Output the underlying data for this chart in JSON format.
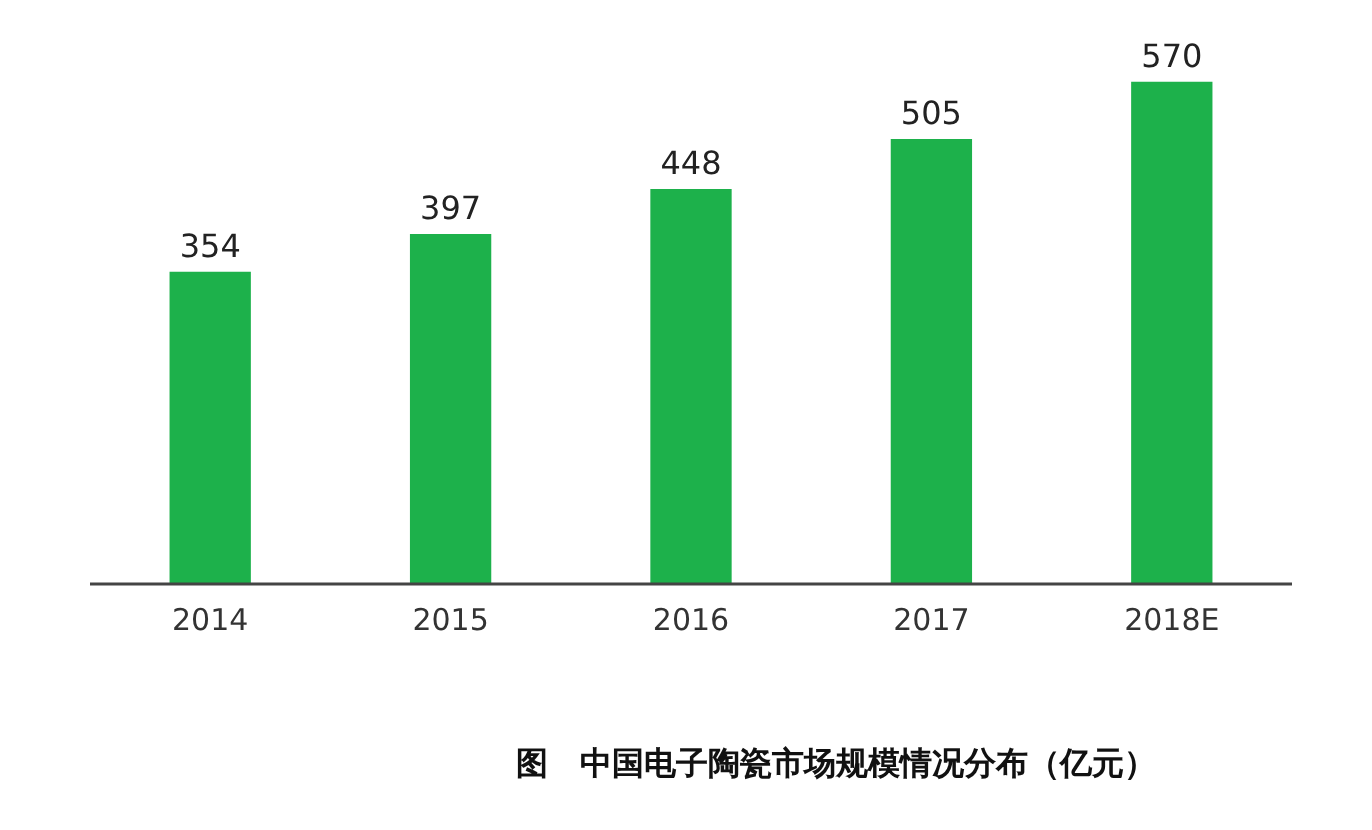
{
  "chart_data": {
    "type": "bar",
    "title": "图　中国电子陶瓷市场规模情况分布（亿元）",
    "categories": [
      "2014",
      "2015",
      "2016",
      "2017",
      "2018E"
    ],
    "values": [
      354,
      397,
      448,
      505,
      570
    ],
    "color": "#1db14b",
    "data_labels": true,
    "grid": false,
    "legend": false
  }
}
